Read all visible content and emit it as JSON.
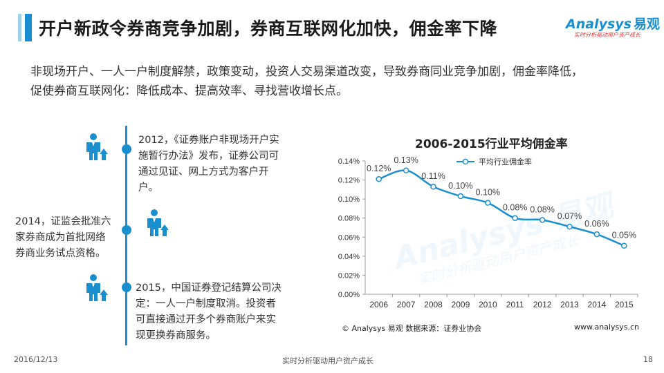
{
  "header": {
    "title": "开户新政令券商竞争加剧，券商互联网化加快，佣金率下降",
    "logo_text": "Analysys",
    "logo_cn": "易观",
    "logo_tagline": "实时分析驱动用户资产成长"
  },
  "intro": {
    "line1": "非现场开户、一人一户制度解禁，政策变动，投资人交易渠道改变，导致券商同业竞争加剧，佣金率降低，",
    "line2": "促使券商互联网化：降低成本、提高效率、寻找营收增长点。"
  },
  "timeline": [
    {
      "lines": [
        "2012，《证券账户非现场开户实",
        "施暂行办法》发布，证券公司可",
        "通过见证、网上方式为客户开",
        "户。"
      ]
    },
    {
      "lines": [
        "2014，证监会批准六",
        "家券商成为首批网络",
        "券商业务试点资格。"
      ]
    },
    {
      "lines": [
        "2015，中国证券登记结算公司决",
        "定：一人一户制度取消。投资者",
        "可直接通过开多个券商账户来实",
        "现更换券商服务。"
      ]
    }
  ],
  "chart_data": {
    "type": "line",
    "title": "2006-2015行业平均佣金率",
    "x": [
      "2006",
      "2007",
      "2008",
      "2009",
      "2010",
      "2011",
      "2012",
      "2013",
      "2014",
      "2015"
    ],
    "series": [
      {
        "name": "平均行业佣金率",
        "values": [
          0.121,
          0.13,
          0.113,
          0.103,
          0.096,
          0.08,
          0.078,
          0.071,
          0.063,
          0.051
        ]
      }
    ],
    "data_labels": [
      "0.12%",
      "0.13%",
      "0.11%",
      "0.10%",
      "0.10%",
      "0.08%",
      "0.08%",
      "0.07%",
      "0.06%",
      "0.05%"
    ],
    "y_ticks": [
      "0.00%",
      "0.02%",
      "0.04%",
      "0.06%",
      "0.08%",
      "0.10%",
      "0.12%",
      "0.14%"
    ],
    "ylim": [
      0,
      0.14
    ],
    "legend_position": "top",
    "color": "#1a8fcf"
  },
  "footer": {
    "source": "© Analysys 易观   数据来源：证券业协会",
    "url": "www.analysys.cn",
    "date": "2016/12/13",
    "slogan": "实时分析驱动用户资产成长",
    "page": "18"
  }
}
